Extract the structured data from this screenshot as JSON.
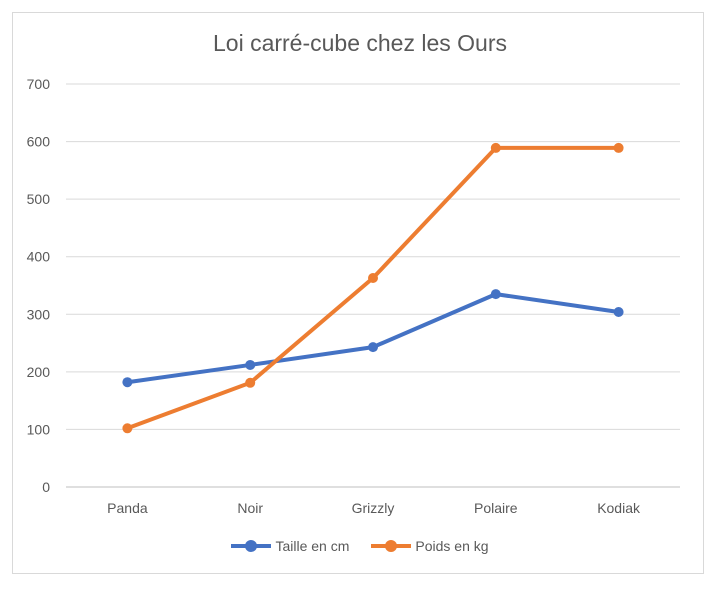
{
  "chart_data": {
    "type": "line",
    "title": "Loi carré-cube chez les Ours",
    "categories": [
      "Panda",
      "Noir",
      "Grizzly",
      "Polaire",
      "Kodiak"
    ],
    "series": [
      {
        "name": "Taille en cm",
        "color": "#4472C4",
        "values": [
          182,
          212,
          243,
          335,
          304
        ]
      },
      {
        "name": "Poids en kg",
        "color": "#ED7D31",
        "values": [
          102,
          181,
          363,
          589,
          589
        ]
      }
    ],
    "yticks": [
      0,
      100,
      200,
      300,
      400,
      500,
      600,
      700
    ],
    "ylim": [
      0,
      700
    ],
    "grid": true,
    "legend_position": "bottom"
  }
}
